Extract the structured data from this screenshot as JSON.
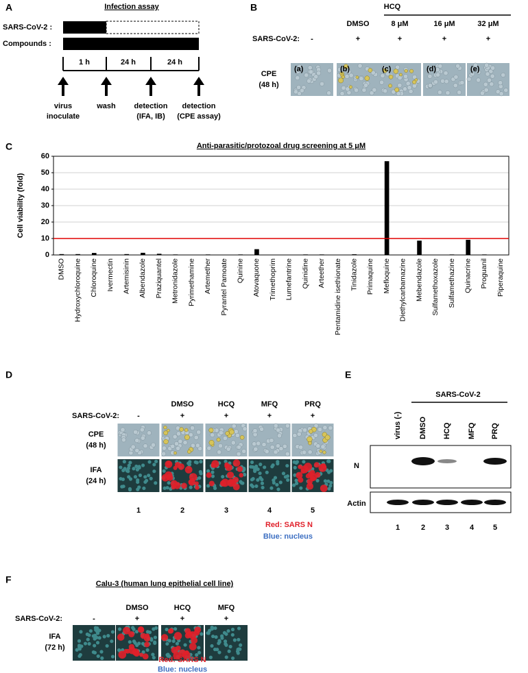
{
  "panel_a": {
    "label": "A",
    "title": "Infection assay",
    "rows": [
      "SARS-CoV-2 :",
      "Compounds :"
    ],
    "durations": [
      "1 h",
      "24 h",
      "24 h"
    ],
    "events": [
      [
        "virus",
        "inoculate"
      ],
      [
        "wash"
      ],
      [
        "detection",
        "(IFA, IB)"
      ],
      [
        "detection",
        "(CPE assay)"
      ]
    ]
  },
  "panel_b": {
    "label": "B",
    "group": "HCQ",
    "treatments": [
      "DMSO",
      "8 μM",
      "16 μM",
      "32 μM"
    ],
    "row_label": "SARS-CoV-2:",
    "infection": [
      "-",
      "+",
      "+",
      "+",
      "+"
    ],
    "image_row": [
      "CPE",
      "(48 h)"
    ],
    "image_labels": [
      "(a)",
      "(b)",
      "(c)",
      "(d)",
      "(e)"
    ]
  },
  "chart_data": {
    "type": "bar",
    "panel_label": "C",
    "title": "Anti-parasitic/protozoal drug screening at 5 μM",
    "y_label": "Cell viability (fold)",
    "categories": [
      "DMSO",
      "Hydroxychloroquine",
      "Chloroquine",
      "Ivermectin",
      "Artemisinin",
      "Albendazole",
      "Praziquantel",
      "Metronidazole",
      "Pyrimethamine",
      "Artemether",
      "Pyrantel Pamoate",
      "Quinine",
      "Atovaquone",
      "Trimethoprim",
      "Lumefantrine",
      "Quinidine",
      "Arteether",
      "Pentamidine isethionate",
      "Tinidazole",
      "Primaquine",
      "Mefloquine",
      "Diethylcarbamazine",
      "Mebendazole",
      "Sulfamethoxazole",
      "Sulfamethazine",
      "Quinacrine",
      "Proguanil",
      "Piperaquine"
    ],
    "values": [
      0.5,
      0.5,
      1.2,
      0.2,
      0.5,
      1.3,
      0.7,
      0.3,
      0.2,
      0.3,
      0.2,
      0.3,
      3.5,
      0.2,
      0.2,
      0.3,
      0.3,
      0.2,
      0.4,
      0.2,
      57,
      0.2,
      8.7,
      0.2,
      0.3,
      9.2,
      0.3,
      0.1
    ],
    "color": "#000000",
    "ylim": [
      0,
      60
    ],
    "yticks": [
      0,
      10,
      20,
      30,
      40,
      50,
      60
    ],
    "grid": true,
    "threshold": 10,
    "threshold_color": "#e00000"
  },
  "panel_d": {
    "label": "D",
    "treatments": [
      "DMSO",
      "HCQ",
      "MFQ",
      "PRQ"
    ],
    "row_label": "SARS-CoV-2:",
    "infection": [
      "-",
      "+",
      "+",
      "+",
      "+"
    ],
    "image_rows": [
      [
        "CPE",
        "(48 h)"
      ],
      [
        "IFA",
        "(24 h)"
      ]
    ],
    "lanes": [
      1,
      2,
      3,
      4,
      5
    ],
    "legend": [
      "Red: SARS N",
      "Blue: nucleus"
    ]
  },
  "panel_e": {
    "label": "E",
    "group": "SARS-CoV-2",
    "lane_labels": [
      "virus (-)",
      "DMSO",
      "HCQ",
      "MFQ",
      "PRQ"
    ],
    "blots": [
      "N",
      "Actin"
    ],
    "lanes": [
      1,
      2,
      3,
      4,
      5
    ]
  },
  "panel_f": {
    "label": "F",
    "title": "Calu-3 (human lung epithelial cell line)",
    "treatments": [
      "DMSO",
      "HCQ",
      "MFQ"
    ],
    "row_label": "SARS-CoV-2:",
    "infection": [
      "-",
      "+",
      "+",
      "+"
    ],
    "image_row": [
      "IFA",
      "(72 h)"
    ],
    "legend": [
      "Red: SARS N",
      "Blue: nucleus"
    ]
  }
}
